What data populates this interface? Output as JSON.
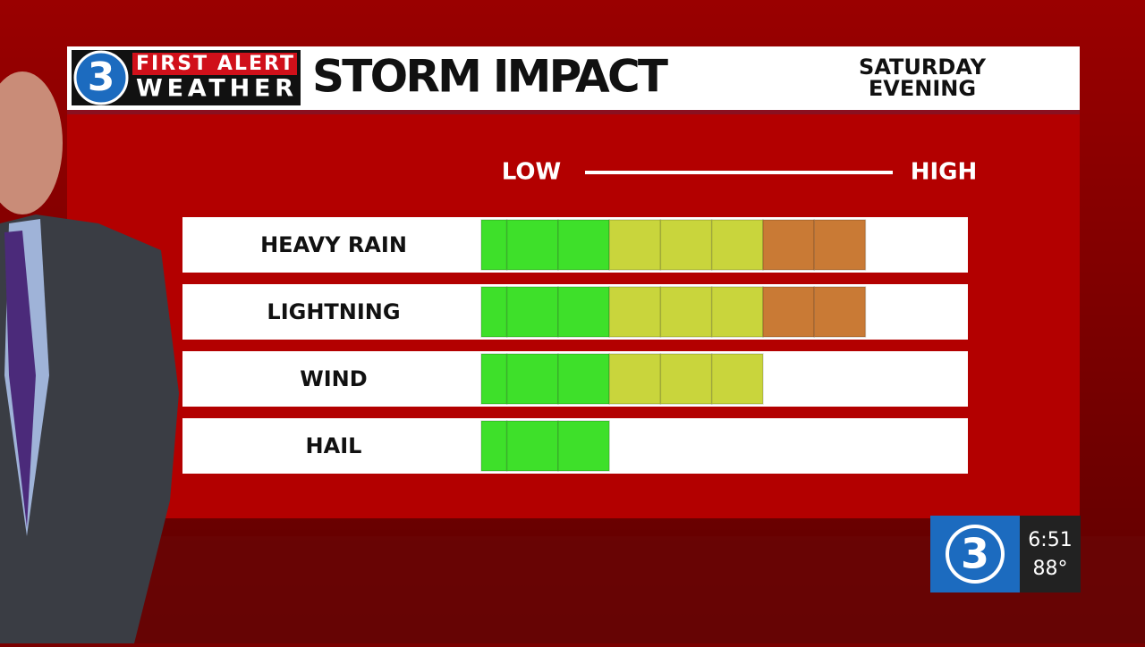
{
  "header": {
    "logo_number": "3",
    "logo_line1": "FIRST ALERT",
    "logo_line2": "WEATHER"
  },
  "chart_data": {
    "type": "bar",
    "orientation": "horizontal",
    "title": "STORM IMPACT",
    "subtitle": [
      "SATURDAY",
      "EVENING"
    ],
    "scale_labels": [
      "LOW",
      "HIGH"
    ],
    "categories": [
      "HEAVY RAIN",
      "LIGHTNING",
      "WIND",
      "HAIL"
    ],
    "values": [
      7.5,
      7.5,
      5.5,
      2.5
    ],
    "xlim": [
      0,
      9.5
    ],
    "color_bands": [
      {
        "to": 2.5,
        "color": "#3ee02a"
      },
      {
        "to": 5.5,
        "color": "#c9d53c"
      },
      {
        "to": 7.5,
        "color": "#c97a35"
      }
    ]
  },
  "bug": {
    "number": "3",
    "time": "6:51",
    "temperature": "88°"
  }
}
